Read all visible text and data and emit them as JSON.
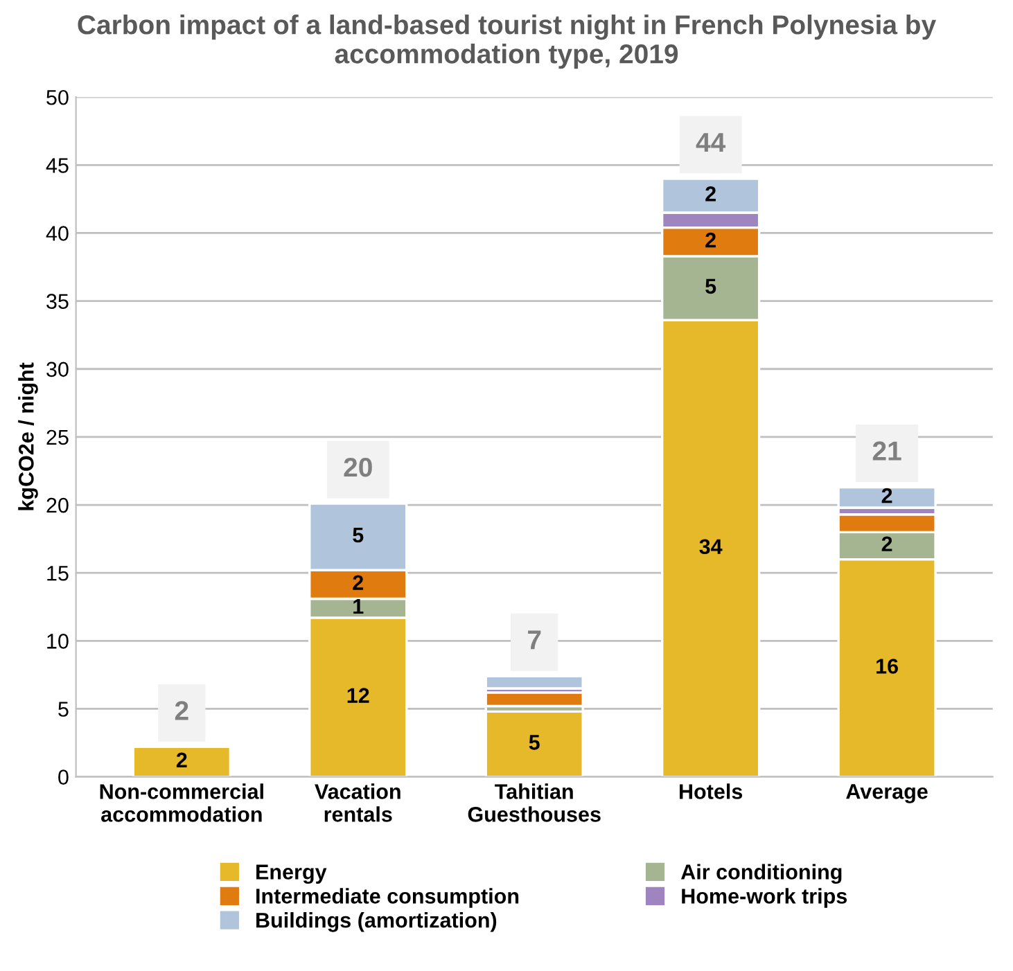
{
  "chart_data": {
    "type": "bar",
    "stacked": true,
    "title": "Carbon impact of a land-based tourist night in French Polynesia by accommodation type, 2019",
    "ylabel": "kgCO2e / night",
    "categories": [
      "Non-commercial\naccommodation",
      "Vacation\nrentals",
      "Tahitian\nGuesthouses",
      "Hotels",
      "Average"
    ],
    "series": [
      {
        "name": "Energy",
        "color": "#e6b92a",
        "values": [
          2.2,
          11.7,
          4.8,
          33.6,
          16.0
        ],
        "value_labels": [
          "2",
          "12",
          "5",
          "34",
          "16"
        ]
      },
      {
        "name": "Air conditioning",
        "color": "#a5b592",
        "values": [
          null,
          1.4,
          0.4,
          4.7,
          2.0
        ],
        "value_labels": [
          null,
          "1",
          null,
          "5",
          "2"
        ]
      },
      {
        "name": "Intermediate consumption",
        "color": "#e07b10",
        "values": [
          null,
          2.1,
          1.0,
          2.1,
          1.3
        ],
        "value_labels": [
          null,
          "2",
          null,
          "2",
          null
        ]
      },
      {
        "name": "Home-work trips",
        "color": "#9f85c0",
        "values": [
          null,
          null,
          0.3,
          1.1,
          0.5
        ],
        "value_labels": [
          null,
          null,
          null,
          null,
          null
        ]
      },
      {
        "name": "Buildings (amortization)",
        "color": "#b0c4dc",
        "values": [
          null,
          4.9,
          0.9,
          2.5,
          1.5
        ],
        "value_labels": [
          null,
          "5",
          null,
          "2",
          "2"
        ]
      }
    ],
    "totals": [
      "2",
      "20",
      "7",
      "44",
      "21"
    ],
    "ylim": [
      0,
      50
    ],
    "yticks": [
      0,
      5,
      10,
      15,
      20,
      25,
      30,
      35,
      40,
      45,
      50
    ],
    "grid": "y",
    "legend": "bottom"
  }
}
